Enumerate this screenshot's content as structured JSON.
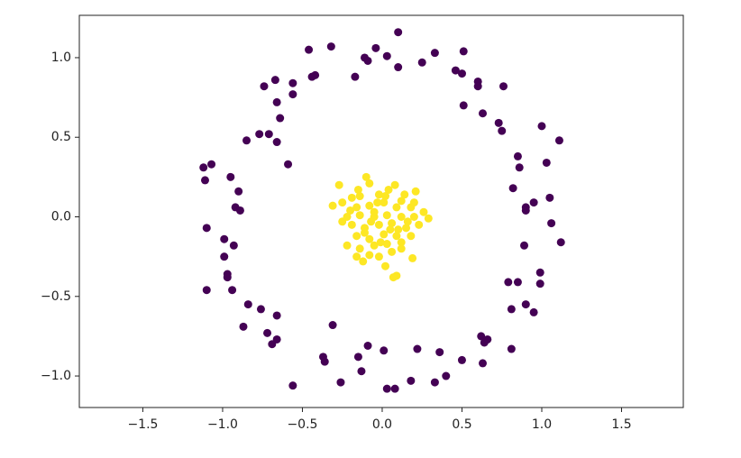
{
  "chart_data": {
    "type": "scatter",
    "xlim": [
      -1.898,
      1.887
    ],
    "ylim": [
      -1.198,
      1.266
    ],
    "xticks": [
      {
        "value": -1.5,
        "label": "−1.5"
      },
      {
        "value": -1,
        "label": "−1.0"
      },
      {
        "value": -0.5,
        "label": "−0.5"
      },
      {
        "value": 0,
        "label": "0.0"
      },
      0.5,
      {
        "value": 1,
        "label": "1.0"
      },
      1.5
    ],
    "yticks": [
      {
        "value": 1,
        "label": "1.0"
      },
      0.5,
      {
        "value": 0,
        "label": "0.0"
      },
      {
        "value": -0.5,
        "label": "−0.5"
      },
      {
        "value": -1,
        "label": "−1.0"
      }
    ],
    "series": [
      {
        "color": "#440154",
        "x": [
          0.1,
          -0.04,
          -0.32,
          -0.46,
          -0.11,
          -0.09,
          0.03,
          0.1,
          0.25,
          0.33,
          0.51,
          0.46,
          0.5,
          0.6,
          0.6,
          0.76,
          -0.17,
          -0.44,
          -0.42,
          -0.67,
          -0.74,
          -0.56,
          -0.56,
          -0.66,
          -0.64,
          0.51,
          0.63,
          0.73,
          0.75,
          1.0,
          1.11,
          -0.85,
          -0.77,
          -0.71,
          -0.66,
          -0.59,
          0.85,
          0.86,
          0.82,
          1.03,
          -1.12,
          -1.07,
          -0.95,
          -0.9,
          -0.92,
          -0.89,
          -1.11,
          1.05,
          0.95,
          0.9,
          0.9,
          1.06,
          1.12,
          -1.1,
          -0.99,
          -0.93,
          -0.99,
          0.89,
          -0.97,
          -0.97,
          0.99,
          0.99,
          0.85,
          0.79,
          -1.1,
          -0.94,
          -0.76,
          -0.84,
          -0.66,
          0.81,
          0.9,
          0.95,
          -0.87,
          -0.31,
          -0.72,
          -0.66,
          -0.69,
          0.62,
          0.66,
          0.64,
          -0.09,
          -0.37,
          -0.36,
          -0.15,
          -0.13,
          0.01,
          0.22,
          0.36,
          0.5,
          0.81,
          0.63,
          -0.56,
          -0.26,
          0.03,
          0.08,
          0.18,
          0.33,
          0.4
        ],
        "y": [
          1.16,
          1.06,
          1.07,
          1.05,
          1.0,
          0.98,
          1.01,
          0.94,
          0.97,
          1.03,
          1.04,
          0.92,
          0.9,
          0.85,
          0.82,
          0.82,
          0.88,
          0.88,
          0.89,
          0.86,
          0.82,
          0.84,
          0.77,
          0.72,
          0.62,
          0.7,
          0.65,
          0.59,
          0.54,
          0.57,
          0.48,
          0.48,
          0.52,
          0.52,
          0.47,
          0.33,
          0.38,
          0.31,
          0.18,
          0.34,
          0.31,
          0.33,
          0.25,
          0.16,
          0.06,
          0.04,
          0.23,
          0.12,
          0.09,
          0.06,
          0.04,
          -0.04,
          -0.16,
          -0.07,
          -0.14,
          -0.18,
          -0.25,
          -0.18,
          -0.36,
          -0.38,
          -0.35,
          -0.42,
          -0.41,
          -0.41,
          -0.46,
          -0.46,
          -0.58,
          -0.55,
          -0.62,
          -0.58,
          -0.55,
          -0.6,
          -0.69,
          -0.68,
          -0.73,
          -0.77,
          -0.8,
          -0.75,
          -0.77,
          -0.79,
          -0.81,
          -0.88,
          -0.91,
          -0.88,
          -0.97,
          -0.84,
          -0.83,
          -0.85,
          -0.9,
          -0.83,
          -0.92,
          -1.06,
          -1.04,
          -1.08,
          -1.08,
          -1.03,
          -1.04,
          -1.0
        ]
      },
      {
        "color": "#fde725",
        "x": [
          -0.1,
          -0.08,
          -0.27,
          0.08,
          0.04,
          0.21,
          -0.19,
          -0.14,
          -0.02,
          0.12,
          -0.25,
          -0.16,
          -0.08,
          0.01,
          0.09,
          0.18,
          0.26,
          0.29,
          -0.22,
          -0.14,
          -0.05,
          0.03,
          0.12,
          0.2,
          -0.19,
          -0.11,
          -0.02,
          0.06,
          0.15,
          0.23,
          -0.25,
          -0.16,
          -0.08,
          0.01,
          0.09,
          0.18,
          -0.14,
          -0.05,
          0.03,
          0.12,
          -0.16,
          -0.08,
          -0.02,
          0.06,
          0.19,
          0.02,
          0.09,
          0.07,
          -0.12,
          -0.05,
          -0.03,
          0.02,
          0.14,
          -0.07,
          0.05,
          -0.01,
          -0.2,
          -0.31,
          -0.15,
          0.16,
          0.2,
          0.1,
          -0.11,
          -0.22,
          0.12
        ],
        "y": [
          0.25,
          0.21,
          0.2,
          0.2,
          0.17,
          0.16,
          0.12,
          0.13,
          0.14,
          0.1,
          0.09,
          0.06,
          0.07,
          0.09,
          0.06,
          0.06,
          0.03,
          -0.01,
          0.0,
          0.01,
          0.0,
          0.01,
          0.0,
          0.0,
          -0.05,
          -0.07,
          -0.05,
          -0.04,
          -0.07,
          -0.05,
          -0.03,
          -0.12,
          -0.14,
          -0.11,
          -0.12,
          -0.12,
          -0.2,
          -0.18,
          -0.17,
          -0.16,
          -0.25,
          -0.24,
          -0.25,
          -0.22,
          -0.26,
          -0.31,
          -0.37,
          -0.38,
          -0.28,
          0.03,
          0.09,
          0.13,
          0.14,
          -0.03,
          -0.08,
          -0.16,
          0.04,
          0.07,
          0.17,
          -0.03,
          0.09,
          -0.08,
          -0.1,
          -0.18,
          -0.2
        ]
      }
    ]
  }
}
